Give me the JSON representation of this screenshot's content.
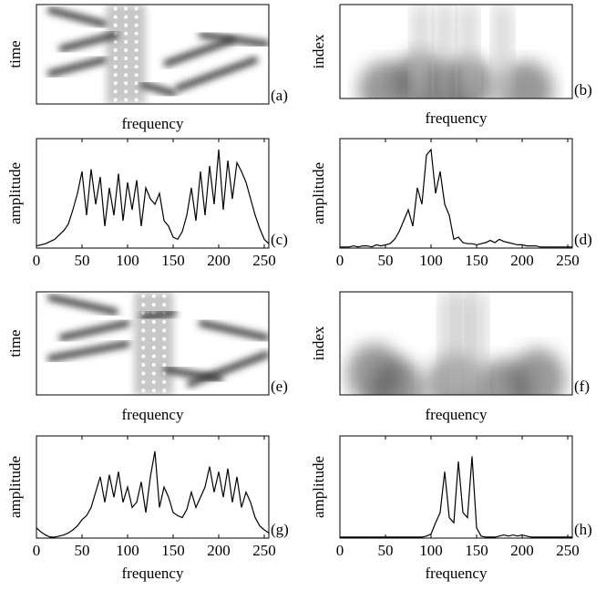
{
  "chart_data": [
    {
      "type": "image",
      "ylabel": "time",
      "xlabel": "frequency",
      "label": "(a)"
    },
    {
      "type": "image",
      "ylabel": "index",
      "xlabel": "frequency",
      "label": "(b)"
    },
    {
      "type": "line",
      "ylabel": "amplitude",
      "label": "(c)",
      "color": "#000000",
      "x": [
        0,
        5,
        10,
        15,
        20,
        25,
        30,
        35,
        40,
        45,
        50,
        55,
        60,
        65,
        70,
        75,
        80,
        85,
        90,
        95,
        100,
        105,
        110,
        115,
        120,
        125,
        130,
        135,
        140,
        145,
        150,
        155,
        160,
        165,
        170,
        175,
        180,
        185,
        190,
        195,
        200,
        205,
        210,
        215,
        220,
        225,
        230,
        235,
        240,
        245,
        250,
        255
      ],
      "values": [
        2,
        3,
        4,
        6,
        8,
        12,
        16,
        22,
        35,
        50,
        70,
        30,
        72,
        40,
        65,
        20,
        55,
        30,
        68,
        25,
        60,
        35,
        62,
        20,
        55,
        45,
        40,
        50,
        25,
        20,
        10,
        8,
        15,
        30,
        55,
        25,
        70,
        30,
        75,
        40,
        90,
        35,
        80,
        45,
        78,
        70,
        60,
        45,
        30,
        18,
        8,
        4
      ],
      "xlim": [
        0,
        255
      ],
      "ylim": [
        0,
        100
      ],
      "xticks": [
        0,
        50,
        100,
        150,
        200,
        250
      ]
    },
    {
      "type": "line",
      "ylabel": "amplitude",
      "label": "(d)",
      "color": "#000000",
      "x": [
        0,
        5,
        10,
        15,
        20,
        25,
        30,
        35,
        40,
        45,
        50,
        55,
        60,
        65,
        70,
        75,
        80,
        85,
        90,
        95,
        100,
        105,
        110,
        115,
        120,
        125,
        130,
        135,
        140,
        145,
        150,
        155,
        160,
        165,
        170,
        175,
        180,
        185,
        190,
        195,
        200,
        205,
        210,
        215,
        220,
        225,
        230,
        235,
        240,
        245,
        250,
        255
      ],
      "values": [
        1,
        1,
        1,
        2,
        1,
        2,
        2,
        1,
        3,
        2,
        3,
        4,
        8,
        15,
        25,
        35,
        20,
        55,
        40,
        85,
        90,
        50,
        70,
        40,
        30,
        8,
        10,
        5,
        4,
        4,
        3,
        4,
        5,
        7,
        5,
        8,
        6,
        5,
        4,
        3,
        3,
        2,
        2,
        2,
        1,
        1,
        1,
        1,
        1,
        1,
        1,
        1
      ],
      "xlim": [
        0,
        255
      ],
      "ylim": [
        0,
        100
      ],
      "xticks": [
        0,
        50,
        100,
        150,
        200,
        250
      ]
    },
    {
      "type": "image",
      "ylabel": "time",
      "xlabel": "frequency",
      "label": "(e)"
    },
    {
      "type": "image",
      "ylabel": "index",
      "xlabel": "frequency",
      "label": "(f)"
    },
    {
      "type": "line",
      "ylabel": "amplitude",
      "xlabel": "frequency",
      "label": "(g)",
      "color": "#000000",
      "x": [
        0,
        5,
        10,
        15,
        20,
        25,
        30,
        35,
        40,
        45,
        50,
        55,
        60,
        65,
        70,
        75,
        80,
        85,
        90,
        95,
        100,
        105,
        110,
        115,
        120,
        125,
        130,
        135,
        140,
        145,
        150,
        155,
        160,
        165,
        170,
        175,
        180,
        185,
        190,
        195,
        200,
        205,
        210,
        215,
        220,
        225,
        230,
        235,
        240,
        245,
        250,
        255
      ],
      "values": [
        10,
        6,
        3,
        1,
        1,
        2,
        3,
        5,
        8,
        12,
        18,
        22,
        30,
        45,
        60,
        35,
        62,
        40,
        65,
        35,
        50,
        30,
        35,
        55,
        25,
        60,
        85,
        30,
        50,
        40,
        25,
        22,
        20,
        28,
        45,
        30,
        40,
        50,
        70,
        45,
        65,
        40,
        68,
        35,
        60,
        30,
        45,
        35,
        20,
        12,
        8,
        5
      ],
      "xlim": [
        0,
        255
      ],
      "ylim": [
        0,
        100
      ],
      "xticks": [
        0,
        50,
        100,
        150,
        200,
        250
      ]
    },
    {
      "type": "line",
      "ylabel": "amplitude",
      "xlabel": "frequency",
      "label": "(h)",
      "color": "#000000",
      "x": [
        0,
        5,
        10,
        15,
        20,
        25,
        30,
        35,
        40,
        45,
        50,
        55,
        60,
        65,
        70,
        75,
        80,
        85,
        90,
        95,
        100,
        105,
        110,
        115,
        120,
        125,
        130,
        135,
        140,
        145,
        150,
        155,
        160,
        165,
        170,
        175,
        180,
        185,
        190,
        195,
        200,
        205,
        210,
        215,
        220,
        225,
        230,
        235,
        240,
        245,
        250,
        255
      ],
      "values": [
        1,
        1,
        1,
        1,
        1,
        1,
        1,
        1,
        1,
        1,
        1,
        1,
        1,
        1,
        1,
        1,
        1,
        1,
        1,
        2,
        4,
        15,
        25,
        65,
        20,
        15,
        75,
        25,
        20,
        80,
        10,
        2,
        1,
        1,
        1,
        2,
        3,
        2,
        3,
        2,
        3,
        2,
        1,
        1,
        1,
        1,
        1,
        1,
        1,
        1,
        1,
        1
      ],
      "xlim": [
        0,
        255
      ],
      "ylim": [
        0,
        100
      ],
      "xticks": [
        0,
        50,
        100,
        150,
        200,
        250
      ]
    }
  ]
}
